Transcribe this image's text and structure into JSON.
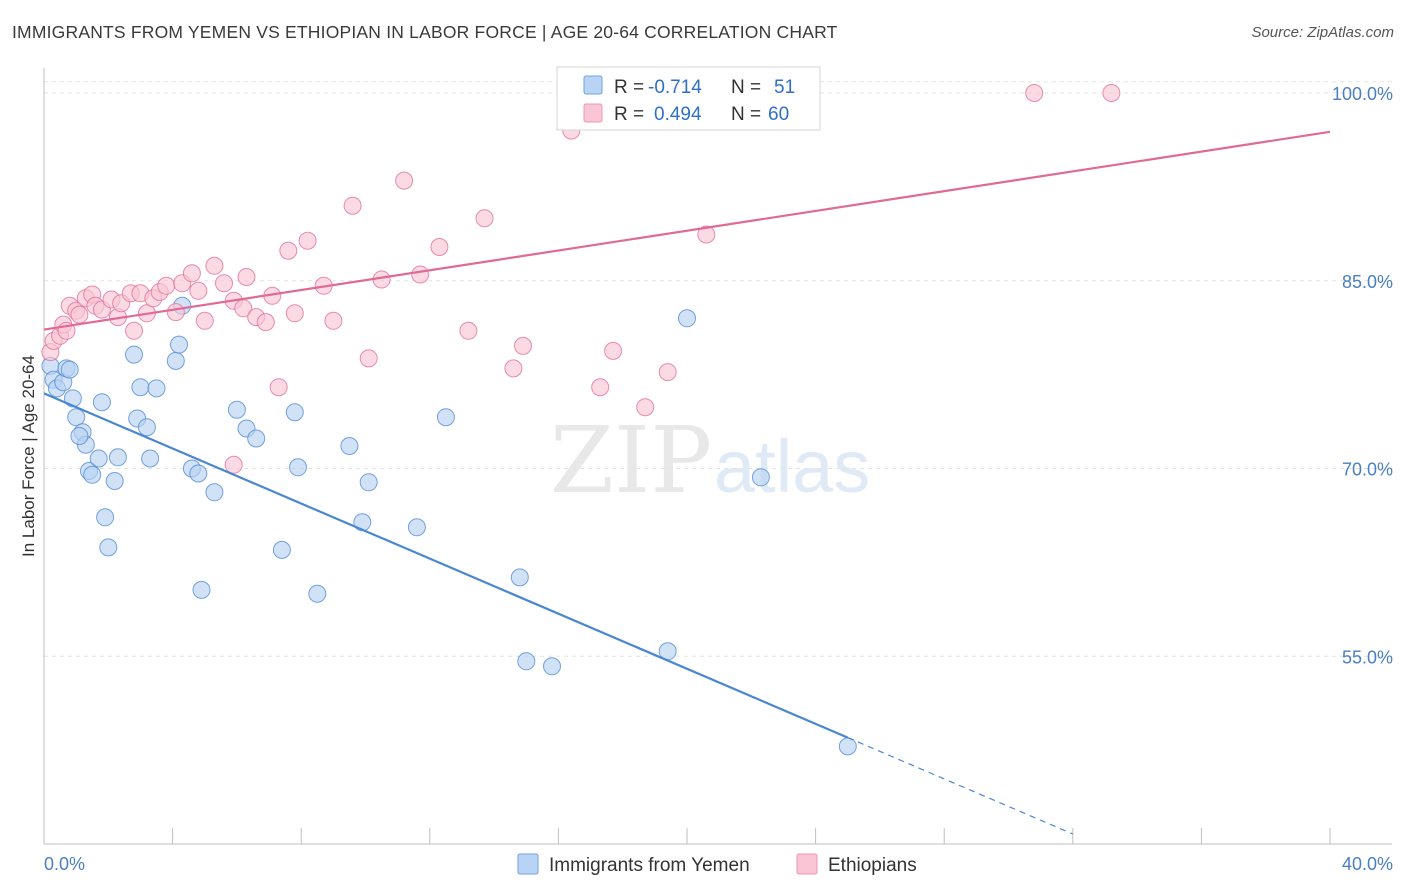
{
  "title": "IMMIGRANTS FROM YEMEN VS ETHIOPIAN IN LABOR FORCE | AGE 20-64 CORRELATION CHART",
  "source": "Source: ZipAtlas.com",
  "watermark": {
    "zip": "ZIP",
    "atlas": "atlas"
  },
  "legend": {
    "r_label": "R =",
    "n_label": "N =",
    "rows": [
      {
        "r": "-0.714",
        "n": "51",
        "fill": "#b8d3f3",
        "stroke": "#6fa3e0"
      },
      {
        "r": "0.494",
        "n": "60",
        "fill": "#f9c6d6",
        "stroke": "#ee94b2"
      }
    ]
  },
  "chart_data": {
    "type": "scatter",
    "xlabel": "",
    "ylabel": "In Labor Force | Age 20-64",
    "xlim": [
      0,
      40
    ],
    "ylim": [
      40,
      102
    ],
    "x_tick_labels": [
      "0.0%",
      "40.0%"
    ],
    "y_ticks": [
      55,
      70,
      85,
      100
    ],
    "y_tick_labels": [
      "55.0%",
      "70.0%",
      "85.0%",
      "100.0%"
    ],
    "grid": true,
    "series": [
      {
        "name": "Immigrants from Yemen",
        "color": "#4a86d4",
        "fill": "#b8d3f3",
        "trend": {
          "x0": 0,
          "y0": 76.0,
          "x1": 25.0,
          "y1": 48.5,
          "dash_to_x": 32.0,
          "dash_to_y": 40.8
        },
        "points": [
          [
            0.2,
            78.2
          ],
          [
            0.3,
            77.1
          ],
          [
            0.4,
            76.4
          ],
          [
            0.6,
            76.9
          ],
          [
            0.7,
            78.0
          ],
          [
            0.8,
            77.9
          ],
          [
            0.9,
            75.6
          ],
          [
            1.0,
            74.1
          ],
          [
            1.2,
            72.9
          ],
          [
            1.3,
            71.9
          ],
          [
            1.4,
            69.8
          ],
          [
            1.5,
            69.5
          ],
          [
            1.7,
            70.8
          ],
          [
            1.8,
            75.3
          ],
          [
            1.9,
            66.1
          ],
          [
            2.0,
            63.7
          ],
          [
            2.2,
            69.0
          ],
          [
            2.3,
            70.9
          ],
          [
            2.8,
            79.1
          ],
          [
            2.9,
            74.0
          ],
          [
            3.0,
            76.5
          ],
          [
            3.2,
            73.3
          ],
          [
            3.3,
            70.8
          ],
          [
            3.5,
            76.4
          ],
          [
            4.1,
            78.6
          ],
          [
            4.2,
            79.9
          ],
          [
            4.3,
            83.0
          ],
          [
            4.6,
            70.0
          ],
          [
            4.8,
            69.6
          ],
          [
            4.9,
            60.3
          ],
          [
            5.3,
            68.1
          ],
          [
            6.0,
            74.7
          ],
          [
            6.3,
            73.2
          ],
          [
            6.6,
            72.4
          ],
          [
            7.4,
            63.5
          ],
          [
            7.8,
            74.5
          ],
          [
            7.9,
            70.1
          ],
          [
            8.5,
            60.0
          ],
          [
            9.5,
            71.8
          ],
          [
            9.9,
            65.7
          ],
          [
            10.1,
            68.9
          ],
          [
            11.6,
            65.3
          ],
          [
            12.5,
            74.1
          ],
          [
            14.8,
            61.3
          ],
          [
            15.0,
            54.6
          ],
          [
            15.8,
            54.2
          ],
          [
            19.4,
            55.4
          ],
          [
            20.0,
            82.0
          ],
          [
            22.3,
            69.3
          ],
          [
            25.0,
            47.8
          ],
          [
            1.1,
            72.6
          ]
        ]
      },
      {
        "name": "Ethiopians",
        "color": "#e06a96",
        "fill": "#f9c6d6",
        "trend": {
          "x0": 0,
          "y0": 81.1,
          "x1": 40.0,
          "y1": 96.9
        },
        "points": [
          [
            0.2,
            79.3
          ],
          [
            0.3,
            80.2
          ],
          [
            0.5,
            80.6
          ],
          [
            0.6,
            81.5
          ],
          [
            0.7,
            81.0
          ],
          [
            0.8,
            83.0
          ],
          [
            1.0,
            82.6
          ],
          [
            1.1,
            82.3
          ],
          [
            1.3,
            83.6
          ],
          [
            1.5,
            83.9
          ],
          [
            1.6,
            83.0
          ],
          [
            1.8,
            82.7
          ],
          [
            2.1,
            83.5
          ],
          [
            2.3,
            82.1
          ],
          [
            2.4,
            83.2
          ],
          [
            2.7,
            84.0
          ],
          [
            2.8,
            81.0
          ],
          [
            3.0,
            84.0
          ],
          [
            3.2,
            82.4
          ],
          [
            3.4,
            83.6
          ],
          [
            3.6,
            84.1
          ],
          [
            3.8,
            84.6
          ],
          [
            4.1,
            82.5
          ],
          [
            4.3,
            84.8
          ],
          [
            4.6,
            85.6
          ],
          [
            4.8,
            84.2
          ],
          [
            5.0,
            81.8
          ],
          [
            5.3,
            86.2
          ],
          [
            5.6,
            84.8
          ],
          [
            5.9,
            83.4
          ],
          [
            6.2,
            82.8
          ],
          [
            6.3,
            85.3
          ],
          [
            6.6,
            82.1
          ],
          [
            6.9,
            81.7
          ],
          [
            7.1,
            83.8
          ],
          [
            7.6,
            87.4
          ],
          [
            7.8,
            82.4
          ],
          [
            8.2,
            88.2
          ],
          [
            8.7,
            84.6
          ],
          [
            9.0,
            81.8
          ],
          [
            9.6,
            91.0
          ],
          [
            10.1,
            78.8
          ],
          [
            10.5,
            85.1
          ],
          [
            11.2,
            93.0
          ],
          [
            11.7,
            85.5
          ],
          [
            12.3,
            87.7
          ],
          [
            13.2,
            81.0
          ],
          [
            13.7,
            90.0
          ],
          [
            14.6,
            78.0
          ],
          [
            14.9,
            79.8
          ],
          [
            16.4,
            97.0
          ],
          [
            17.3,
            76.5
          ],
          [
            17.7,
            79.4
          ],
          [
            18.7,
            74.9
          ],
          [
            19.4,
            77.7
          ],
          [
            20.6,
            88.7
          ],
          [
            30.8,
            100.0
          ],
          [
            33.2,
            100.0
          ],
          [
            5.9,
            70.3
          ],
          [
            7.3,
            76.5
          ]
        ]
      }
    ]
  }
}
